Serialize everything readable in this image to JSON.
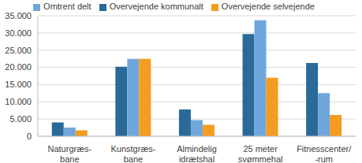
{
  "chart_data": {
    "type": "bar",
    "categories": [
      "Naturgræs-\nbane",
      "Kunstgræs-\nbane",
      "Almindelig\nidrætshal",
      "25 meter\nsvømmehal",
      "Fitnesscenter/\n-rum"
    ],
    "series": [
      {
        "name": "Overvejende kommunalt",
        "color": "#2a6a99",
        "values": [
          4000,
          20200,
          7800,
          29700,
          21300
        ]
      },
      {
        "name": "Omtrent delt",
        "color": "#6fa7dc",
        "values": [
          2500,
          22500,
          4700,
          33700,
          12500
        ]
      },
      {
        "name": "Overvejende selvejende",
        "color": "#f39c1f",
        "values": [
          1700,
          22500,
          3300,
          17000,
          6200
        ]
      }
    ],
    "ylim": [
      0,
      35000
    ],
    "yticks": [
      0,
      {
        "value": 5000,
        "label": "5.000"
      },
      {
        "value": 10000,
        "label": "10.000"
      },
      {
        "value": 15000,
        "label": "15.000"
      },
      {
        "value": 20000,
        "label": "20.000"
      },
      {
        "value": 25000,
        "label": "25.000"
      },
      {
        "value": 30000,
        "label": "30.000"
      },
      {
        "value": 35000,
        "label": "35.000"
      }
    ],
    "grid": true,
    "legend": "top"
  }
}
